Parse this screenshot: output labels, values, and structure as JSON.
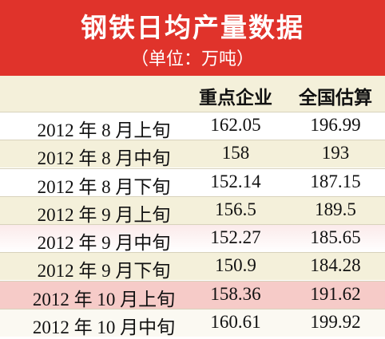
{
  "header": {
    "title": "钢铁日均产量数据",
    "unit": "（单位：万吨）"
  },
  "table": {
    "columns": [
      "重点企业",
      "全国估算"
    ],
    "rows": [
      [
        "2012 年 8 月上旬",
        "162.05",
        "196.99"
      ],
      [
        "2012 年 8 月中旬",
        "158",
        "193"
      ],
      [
        "2012 年 8 月下旬",
        "152.14",
        "187.15"
      ],
      [
        "2012 年 9 月上旬",
        "156.5",
        "189.5"
      ],
      [
        "2012 年 9 月中旬",
        "152.27",
        "185.65"
      ],
      [
        "2012 年 9 月下旬",
        "150.9",
        "184.28"
      ],
      [
        "2012 年 10 月上旬",
        "158.36",
        "191.62"
      ],
      [
        "2012 年 10 月中旬",
        "160.61",
        "199.92"
      ]
    ]
  }
}
